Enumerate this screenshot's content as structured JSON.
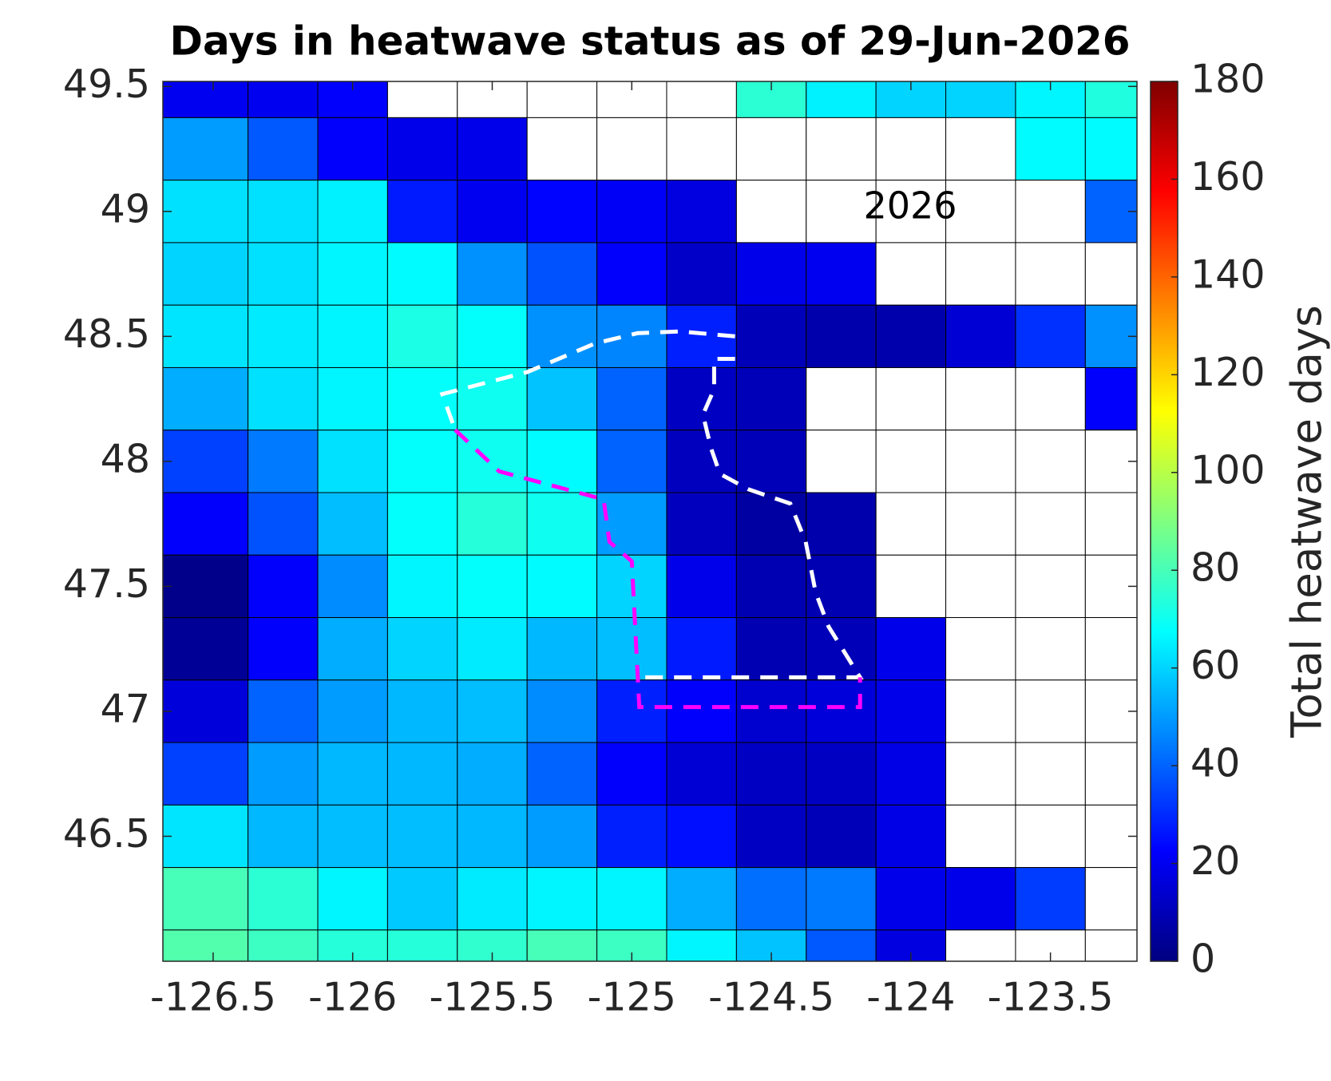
{
  "chart_data": {
    "type": "heatmap",
    "title": "Days in heatwave status as of 29-Jun-2026",
    "annotation": "2026",
    "colorbar_label": "Total heatwave days",
    "colormap": "jet",
    "clim": [
      0,
      180
    ],
    "cticks": [
      0,
      20,
      40,
      60,
      80,
      100,
      120,
      140,
      160,
      180
    ],
    "cell_edges": true,
    "xlim": [
      -126.68,
      -123.19
    ],
    "ylim": [
      46.0,
      49.52
    ],
    "xticks": [
      -126.5,
      -126,
      -125.5,
      -125,
      -124.5,
      -124,
      -123.5
    ],
    "yticks": [
      46.5,
      47,
      47.5,
      48,
      48.5,
      49,
      49.5
    ],
    "x_edges": [
      -126.68,
      -126.375,
      -126.125,
      -125.875,
      -125.625,
      -125.375,
      -125.125,
      -124.875,
      -124.625,
      -124.375,
      -124.125,
      -123.875,
      -123.625,
      -123.375,
      -123.19
    ],
    "y_edges": [
      49.52,
      49.375,
      49.125,
      48.875,
      48.625,
      48.375,
      48.125,
      47.875,
      47.625,
      47.375,
      47.125,
      46.875,
      46.625,
      46.375,
      46.125,
      46.0
    ],
    "values": [
      [
        20,
        20,
        22,
        null,
        null,
        null,
        null,
        null,
        75,
        65,
        60,
        60,
        66,
        73
      ],
      [
        50,
        38,
        22,
        19,
        19,
        null,
        null,
        null,
        null,
        null,
        null,
        null,
        67,
        67
      ],
      [
        62,
        62,
        65,
        27,
        20,
        23,
        21,
        17,
        null,
        null,
        null,
        null,
        null,
        40
      ],
      [
        60,
        62,
        66,
        67,
        48,
        37,
        22,
        13,
        19,
        20,
        null,
        null,
        null,
        null
      ],
      [
        63,
        64,
        66,
        72,
        68,
        48,
        46,
        28,
        10,
        8,
        8,
        15,
        31,
        48
      ],
      [
        53,
        62,
        66,
        68,
        70,
        57,
        40,
        12,
        10,
        null,
        null,
        null,
        null,
        22
      ],
      [
        34,
        44,
        62,
        68,
        70,
        67,
        40,
        11,
        10,
        null,
        null,
        null,
        null,
        null
      ],
      [
        22,
        37,
        56,
        68,
        74,
        70,
        50,
        11,
        6,
        8,
        null,
        null,
        null,
        null
      ],
      [
        2,
        22,
        47,
        66,
        68,
        67,
        60,
        19,
        9,
        9,
        null,
        null,
        null,
        null
      ],
      [
        4,
        22,
        53,
        60,
        64,
        55,
        56,
        27,
        9,
        10,
        19,
        null,
        null,
        null
      ],
      [
        16,
        40,
        50,
        55,
        56,
        47,
        28,
        22,
        14,
        16,
        19,
        null,
        null,
        null
      ],
      [
        34,
        50,
        55,
        55,
        53,
        40,
        22,
        15,
        12,
        12,
        18,
        null,
        null,
        null
      ],
      [
        63,
        55,
        56,
        56,
        55,
        50,
        28,
        25,
        12,
        10,
        18,
        null,
        null,
        null
      ],
      [
        80,
        75,
        66,
        58,
        64,
        66,
        66,
        53,
        42,
        44,
        19,
        19,
        33,
        null
      ],
      [
        82,
        78,
        74,
        74,
        76,
        80,
        78,
        66,
        57,
        38,
        17,
        null,
        null,
        null
      ]
    ],
    "line_style": "dashed",
    "lines": [
      {
        "color": "#ffffff",
        "x": [
          -124.63,
          -124.827,
          -124.979,
          -125.131,
          -125.375,
          -125.679,
          -125.633
        ],
        "y": [
          48.5,
          48.52,
          48.513,
          48.472,
          48.357,
          48.269,
          48.126
        ]
      },
      {
        "color": "#ffffff",
        "x": [
          -124.63,
          -124.705,
          -124.705,
          -124.745,
          -124.716,
          -124.684,
          -124.584,
          -124.432,
          -124.377,
          -124.341,
          -124.295,
          -124.182,
          -124.973
        ],
        "y": [
          48.41,
          48.41,
          48.289,
          48.187,
          48.052,
          47.95,
          47.889,
          47.831,
          47.678,
          47.475,
          47.339,
          47.136,
          47.136
        ]
      },
      {
        "color": "#ff00ff",
        "x": [
          -125.633,
          -125.475,
          -125.101,
          -125.08,
          -125.0,
          -124.973,
          -124.182,
          -124.182
        ],
        "y": [
          48.126,
          47.96,
          47.848,
          47.678,
          47.6,
          47.017,
          47.017,
          47.136
        ]
      }
    ]
  }
}
